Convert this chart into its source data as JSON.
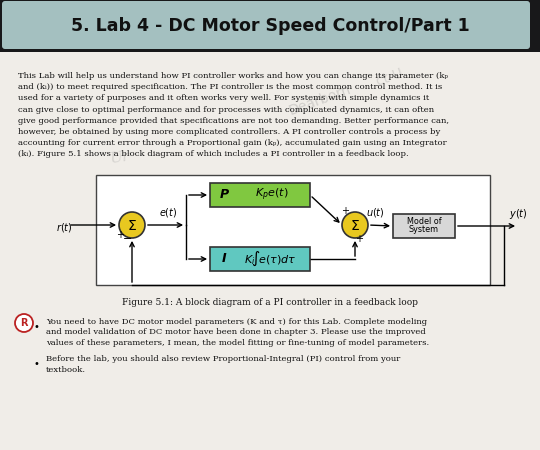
{
  "title": "5. Lab 4 - DC Motor Speed Control/Part 1",
  "body_bg": "#f0ede8",
  "header_dark": "#18181a",
  "header_light": "#b8d8d8",
  "block_P_color": "#80c840",
  "block_I_color": "#60c8c0",
  "block_sys_color": "#d8d8d8",
  "sum_color": "#e8c820",
  "para_lines": [
    "This Lab will help us understand how PI controller works and how you can change its parameter (kₚ",
    "and (kᵢ)) to meet required specification. The PI controller is the most common control method. It is",
    "used for a variety of purposes and it often works very well. For systems with simple dynamics it",
    "can give close to optimal performance and for processes with complicated dynamics, it can often",
    "give good performance provided that specifications are not too demanding. Better performance can,",
    "however, be obtained by using more complicated controllers. A PI controller controls a process by",
    "accounting for current error through a Proportional gain (kₚ), accumulated gain using an Integrator",
    "(kᵢ). Figure 5.1 shows a block diagram of which includes a PI controller in a feedback loop."
  ],
  "figure_caption": "Figure 5.1: A block diagram of a PI controller in a feedback loop",
  "bullet1_lines": [
    "You need to have DC motor model parameters (K and τ) for this Lab. Complete modeling",
    "and model validation of DC motor have been done in chapter 3. Please use the improved",
    "values of these parameters, I mean, the model fitting or fine-tuning of model parameters."
  ],
  "bullet2_lines": [
    "Before the lab, you should also review Proportional-Integral (PI) control from your",
    "textbook."
  ],
  "underline_start": "values of these parameters, I mean, ",
  "underline_text": "the model fitting or fine-tuning",
  "underline_end": " of model parameters."
}
